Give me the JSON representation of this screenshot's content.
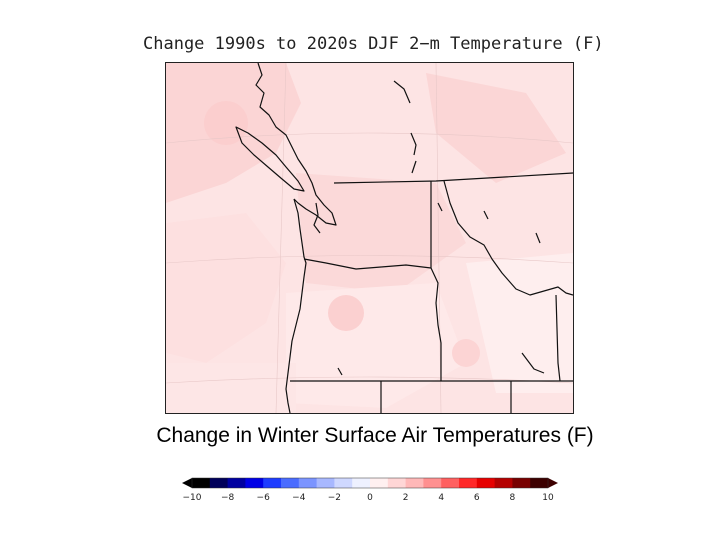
{
  "title": "Change 1990s to 2020s DJF 2−m Temperature (F)",
  "caption": "Change in Winter Surface Air Temperatures (F)",
  "colorbar": {
    "ticks": [
      "−10",
      "−8",
      "−6",
      "−4",
      "−2",
      "0",
      "2",
      "4",
      "6",
      "8",
      "10"
    ],
    "range": [
      -10,
      10
    ],
    "colors_negative": [
      "#000000",
      "#00005a",
      "#0000a0",
      "#0000e6",
      "#1e3cff",
      "#4a6cff",
      "#7b94ff",
      "#a8b8ff",
      "#cfd8ff",
      "#eef1ff"
    ],
    "colors_positive": [
      "#fff0f0",
      "#ffd6d6",
      "#ffb8b8",
      "#ff9090",
      "#ff6060",
      "#ff2828",
      "#e60000",
      "#b40000",
      "#780000",
      "#3c0000"
    ]
  },
  "map": {
    "background_color": "#fde4e4",
    "warm_patch_color": "#fbd3d3",
    "light_patch_color": "#fef0f0"
  }
}
